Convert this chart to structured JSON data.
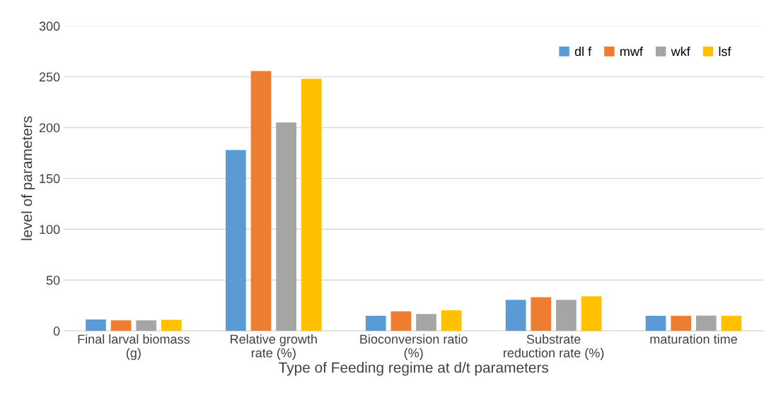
{
  "chart_data": {
    "type": "bar",
    "categories": [
      "Final larval biomass\n(g)",
      "Relative growth\nrate (%)",
      "Bioconversion ratio\n(%)",
      "Substrate\nreduction rate (%)",
      "maturation time"
    ],
    "xlabel": "Type of Feeding regime at d/t parameters",
    "ylabel": "level of parameters",
    "series": [
      {
        "name": "dl f",
        "color": "#5b9bd5",
        "values": [
          11.2,
          178,
          14.8,
          30.5,
          14.8
        ]
      },
      {
        "name": "mwf",
        "color": "#ed7d31",
        "values": [
          10.4,
          255.6,
          19.3,
          33.2,
          14.8
        ]
      },
      {
        "name": "wkf",
        "color": "#a5a5a5",
        "values": [
          10.4,
          205,
          16.6,
          30.5,
          15.1
        ]
      },
      {
        "name": "lsf",
        "color": "#ffc000",
        "values": [
          10.8,
          248,
          20.2,
          34,
          14.8
        ]
      }
    ],
    "ylim": [
      0,
      300
    ],
    "yticks": [
      0,
      50,
      100,
      150,
      200,
      250,
      300
    ],
    "grid": "y",
    "legend": "top right"
  }
}
